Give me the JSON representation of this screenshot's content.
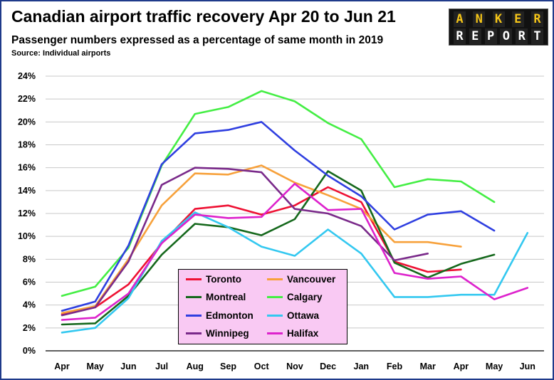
{
  "header": {
    "title": "Canadian airport traffic recovery Apr 20 to Jun 21",
    "subtitle": "Passenger numbers expressed as a percentage of same month in 2019",
    "source": "Source: Individual airports"
  },
  "logo": {
    "row1": [
      "A",
      "N",
      "K",
      "E",
      "R"
    ],
    "row2": [
      "R",
      "E",
      "P",
      "O",
      "R",
      "T"
    ]
  },
  "chart_data": {
    "type": "line",
    "title": "Canadian airport traffic recovery Apr 20 to Jun 21",
    "subtitle": "Passenger numbers expressed as a percentage of same month in 2019",
    "xlabel": "",
    "ylabel": "",
    "categories": [
      "Apr",
      "May",
      "Jun",
      "Jul",
      "Aug",
      "Sep",
      "Oct",
      "Nov",
      "Dec",
      "Jan",
      "Feb",
      "Mar",
      "Apr",
      "May",
      "Jun"
    ],
    "ylim": [
      0,
      24
    ],
    "yticks": [
      "0%",
      "2%",
      "4%",
      "6%",
      "8%",
      "10%",
      "12%",
      "14%",
      "16%",
      "18%",
      "20%",
      "22%",
      "24%"
    ],
    "grid": "horizontal",
    "legend_position": "bottom-center",
    "series": [
      {
        "name": "Toronto",
        "color": "#ee1133",
        "values": [
          3.2,
          3.8,
          5.8,
          9.4,
          12.4,
          12.7,
          11.9,
          12.7,
          14.3,
          13.0,
          7.8,
          6.9,
          7.1,
          null,
          null
        ]
      },
      {
        "name": "Vancouver",
        "color": "#f7a13b",
        "values": [
          3.3,
          3.9,
          8.0,
          12.7,
          15.5,
          15.4,
          16.2,
          14.7,
          13.6,
          12.4,
          9.5,
          9.5,
          9.1,
          null,
          null
        ]
      },
      {
        "name": "Montreal",
        "color": "#15681c",
        "values": [
          2.3,
          2.4,
          4.8,
          8.4,
          11.1,
          10.8,
          10.1,
          11.5,
          15.7,
          14.0,
          7.7,
          6.4,
          7.6,
          8.4,
          null
        ]
      },
      {
        "name": "Calgary",
        "color": "#44ee44",
        "values": [
          4.8,
          5.6,
          9.0,
          16.2,
          20.7,
          21.3,
          22.7,
          21.8,
          19.9,
          18.5,
          14.3,
          15.0,
          14.8,
          13.0,
          null
        ]
      },
      {
        "name": "Edmonton",
        "color": "#2f3fe0",
        "values": [
          3.5,
          4.3,
          9.2,
          16.3,
          19.0,
          19.3,
          20.0,
          17.5,
          15.3,
          13.5,
          10.6,
          11.9,
          12.2,
          10.5,
          null
        ]
      },
      {
        "name": "Ottawa",
        "color": "#33c8f0",
        "values": [
          1.6,
          2.0,
          4.6,
          9.6,
          12.1,
          10.8,
          9.1,
          8.3,
          10.6,
          8.5,
          4.7,
          4.7,
          4.9,
          4.9,
          10.3
        ]
      },
      {
        "name": "Winnipeg",
        "color": "#7a2a8a",
        "values": [
          3.1,
          3.8,
          7.8,
          14.5,
          16.0,
          15.9,
          15.6,
          12.4,
          12.0,
          10.9,
          7.9,
          8.5,
          null,
          null,
          null
        ]
      },
      {
        "name": "Halifax",
        "color": "#dd22cc",
        "values": [
          2.7,
          2.9,
          5.0,
          9.4,
          11.9,
          11.6,
          11.7,
          14.6,
          12.3,
          12.4,
          6.8,
          6.3,
          6.5,
          4.5,
          5.5
        ]
      }
    ]
  },
  "legend": {
    "items": [
      {
        "name": "Toronto",
        "color": "#ee1133"
      },
      {
        "name": "Vancouver",
        "color": "#f7a13b"
      },
      {
        "name": "Montreal",
        "color": "#15681c"
      },
      {
        "name": "Calgary",
        "color": "#44ee44"
      },
      {
        "name": "Edmonton",
        "color": "#2f3fe0"
      },
      {
        "name": "Ottawa",
        "color": "#33c8f0"
      },
      {
        "name": "Winnipeg",
        "color": "#7a2a8a"
      },
      {
        "name": "Halifax",
        "color": "#dd22cc"
      }
    ]
  }
}
